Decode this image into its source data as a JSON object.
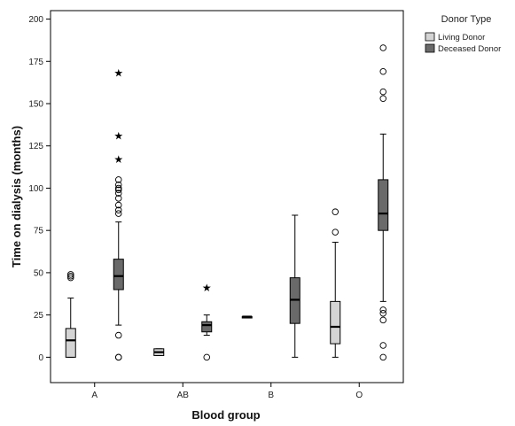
{
  "chart_data": {
    "type": "boxplot",
    "title": "",
    "xlabel": "Blood group",
    "ylabel": "Time on dialysis (months)",
    "ylim": [
      -15,
      205
    ],
    "yticks": [
      0,
      25,
      50,
      75,
      100,
      125,
      150,
      175,
      200
    ],
    "categories": [
      "A",
      "AB",
      "B",
      "O"
    ],
    "legend": {
      "title": "Donor Type",
      "placement": "top-right"
    },
    "colors": {
      "Living Donor": "#d4d4d4",
      "Deceased Donor": "#6a6a6a"
    },
    "series": [
      {
        "name": "Living Donor",
        "boxes": [
          {
            "category": "A",
            "min": 0,
            "q1": 0,
            "median": 10,
            "q3": 17,
            "max": 35,
            "outliers": [
              47,
              48,
              49
            ],
            "extremes": []
          },
          {
            "category": "AB",
            "min": 1,
            "q1": 1,
            "median": 3,
            "q3": 5,
            "max": 5,
            "outliers": [],
            "extremes": []
          },
          {
            "category": "B",
            "min": 24,
            "q1": 24,
            "median": 24,
            "q3": 24,
            "max": 24,
            "outliers": [],
            "extremes": []
          },
          {
            "category": "O",
            "min": 0,
            "q1": 8,
            "median": 18,
            "q3": 33,
            "max": 68,
            "outliers": [
              74,
              86
            ],
            "extremes": []
          }
        ]
      },
      {
        "name": "Deceased Donor",
        "boxes": [
          {
            "category": "A",
            "min": 19,
            "q1": 40,
            "median": 48,
            "q3": 58,
            "max": 80,
            "outliers": [
              0,
              0,
              13,
              85,
              87,
              90,
              94,
              97,
              99,
              100,
              102,
              105
            ],
            "extremes": [
              117,
              131,
              168
            ]
          },
          {
            "category": "AB",
            "min": 13,
            "q1": 15,
            "median": 19,
            "q3": 21,
            "max": 25,
            "outliers": [
              0
            ],
            "extremes": [
              41
            ]
          },
          {
            "category": "B",
            "min": 0,
            "q1": 20,
            "median": 34,
            "q3": 47,
            "max": 84,
            "outliers": [],
            "extremes": []
          },
          {
            "category": "O",
            "min": 33,
            "q1": 75,
            "median": 85,
            "q3": 105,
            "max": 132,
            "outliers": [
              0,
              7,
              22,
              26,
              28,
              153,
              157,
              169,
              183
            ],
            "extremes": []
          }
        ]
      }
    ]
  }
}
